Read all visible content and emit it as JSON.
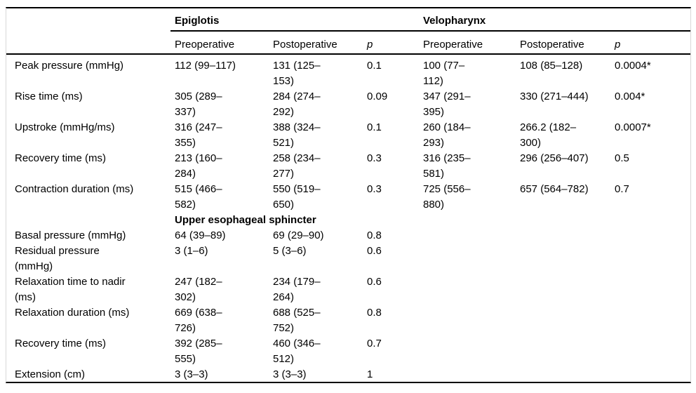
{
  "table": {
    "groups": [
      {
        "label": "Epiglotis"
      },
      {
        "label": "Velopharynx"
      }
    ],
    "subheaders": [
      "Preoperative",
      "Postoperative",
      "p",
      "Preoperative",
      "Postoperative",
      "p"
    ],
    "rows": [
      {
        "type": "data",
        "label": "Peak pressure (mmHg)",
        "cells": [
          "112 (99–117)",
          "131 (125–\n153)",
          "0.1",
          "100 (77–\n112)",
          "108 (85–128)",
          "0.0004*"
        ]
      },
      {
        "type": "data",
        "label": "Rise time (ms)",
        "cells": [
          "305 (289–\n337)",
          "284 (274–\n292)",
          "0.09",
          "347 (291–\n395)",
          "330 (271–444)",
          "0.004*"
        ]
      },
      {
        "type": "data",
        "label": "Upstroke (mmHg/ms)",
        "cells": [
          "316 (247–\n355)",
          "388 (324–\n521)",
          "0.1",
          "260 (184–\n293)",
          "266.2 (182–\n300)",
          "0.0007*"
        ]
      },
      {
        "type": "data",
        "label": "Recovery time (ms)",
        "cells": [
          "213 (160–\n284)",
          "258 (234–\n277)",
          "0.3",
          "316 (235–\n581)",
          "296 (256–407)",
          "0.5"
        ]
      },
      {
        "type": "data",
        "label": "Contraction duration (ms)",
        "cells": [
          "515 (466–\n582)",
          "550 (519–\n650)",
          "0.3",
          "725 (556–\n880)",
          "657 (564–782)",
          "0.7"
        ]
      },
      {
        "type": "section",
        "label": "Upper esophageal sphincter"
      },
      {
        "type": "data",
        "label": "Basal pressure (mmHg)",
        "cells": [
          "64 (39–89)",
          "69 (29–90)",
          "0.8",
          "",
          "",
          ""
        ]
      },
      {
        "type": "data",
        "label": "Residual pressure\n(mmHg)",
        "cells": [
          "3 (1–6)",
          "5 (3–6)",
          "0.6",
          "",
          "",
          ""
        ]
      },
      {
        "type": "data",
        "label": "Relaxation time to nadir\n(ms)",
        "cells": [
          "247 (182–\n302)",
          "234 (179–\n264)",
          "0.6",
          "",
          "",
          ""
        ]
      },
      {
        "type": "data",
        "label": "Relaxation duration (ms)",
        "cells": [
          "669 (638–\n726)",
          "688 (525–\n752)",
          "0.8",
          "",
          "",
          ""
        ]
      },
      {
        "type": "data",
        "label": "Recovery time (ms)",
        "cells": [
          "392 (285–\n555)",
          "460 (346–\n512)",
          "0.7",
          "",
          "",
          ""
        ]
      },
      {
        "type": "data",
        "label": "Extension (cm)",
        "cells": [
          "3 (3–3)",
          "3 (3–3)",
          "1",
          "",
          "",
          ""
        ]
      }
    ]
  },
  "colors": {
    "rule": "#000000",
    "frame_gray": "#d8d8d8",
    "text": "#000000",
    "background": "#ffffff"
  }
}
